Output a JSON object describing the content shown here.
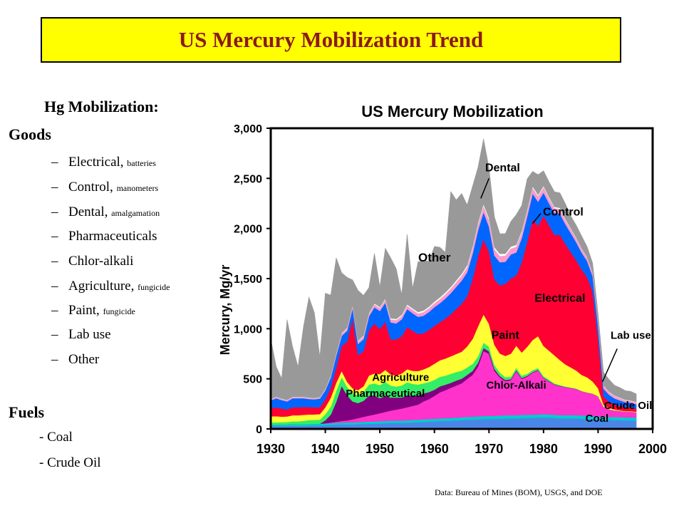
{
  "title": "US Mercury Mobilization Trend",
  "left_panel": {
    "heading": "Hg Mobilization:",
    "goods_label": "Goods",
    "goods": [
      {
        "dash": "–",
        "name": "Electrical,",
        "detail": "batteries"
      },
      {
        "dash": "–",
        "name": "Control,",
        "detail": "manometers"
      },
      {
        "dash": "–",
        "name": "Dental,",
        "detail": "amalgamation"
      },
      {
        "dash": "–",
        "name": "Pharmaceuticals",
        "detail": ""
      },
      {
        "dash": "–",
        "name": "Chlor-alkali",
        "detail": ""
      },
      {
        "dash": "–",
        "name": "Agriculture,",
        "detail": "fungicide"
      },
      {
        "dash": "–",
        "name": "Paint,",
        "detail": "fungicide"
      },
      {
        "dash": "–",
        "name": "Lab use",
        "detail": ""
      },
      {
        "dash": "–",
        "name": "Other",
        "detail": ""
      }
    ],
    "fuels_label": "Fuels",
    "fuels": [
      "- Coal",
      "- Crude Oil"
    ]
  },
  "source_note": "Data: Bureau of Mines (BOM), USGS, and DOE",
  "chart_data": {
    "type": "area",
    "title": "US Mercury Mobilization",
    "xlabel": "",
    "ylabel": "Mercury, Mg/yr",
    "xlim": [
      1930,
      2000
    ],
    "ylim": [
      0,
      3000
    ],
    "xticks": [
      "1930",
      "1940",
      "1950",
      "1960",
      "1970",
      "1980",
      "1990",
      "2000"
    ],
    "yticks": [
      "0",
      "500",
      "1,000",
      "1,500",
      "2,000",
      "2,500",
      "3,000"
    ],
    "grid": false,
    "x": [
      1930,
      1931,
      1932,
      1933,
      1934,
      1935,
      1936,
      1937,
      1938,
      1939,
      1940,
      1941,
      1942,
      1943,
      1944,
      1945,
      1946,
      1947,
      1948,
      1949,
      1950,
      1951,
      1952,
      1953,
      1954,
      1955,
      1956,
      1957,
      1958,
      1959,
      1960,
      1961,
      1962,
      1963,
      1964,
      1965,
      1966,
      1967,
      1968,
      1969,
      1970,
      1971,
      1972,
      1973,
      1974,
      1975,
      1976,
      1977,
      1978,
      1979,
      1980,
      1981,
      1982,
      1983,
      1984,
      1985,
      1986,
      1987,
      1988,
      1989,
      1990,
      1991,
      1992,
      1993,
      1994,
      1995,
      1996,
      1997
    ],
    "series": [
      {
        "name": "Coal",
        "color": "#4a86e8",
        "values": [
          30,
          30,
          28,
          30,
          32,
          30,
          30,
          32,
          33,
          35,
          38,
          40,
          42,
          45,
          45,
          45,
          48,
          50,
          52,
          52,
          55,
          58,
          60,
          60,
          60,
          62,
          65,
          68,
          70,
          72,
          75,
          78,
          80,
          82,
          85,
          88,
          90,
          92,
          95,
          98,
          100,
          100,
          102,
          105,
          105,
          105,
          108,
          110,
          110,
          112,
          115,
          112,
          110,
          105,
          105,
          105,
          105,
          102,
          100,
          100,
          95,
          90,
          90,
          88,
          88,
          85,
          85,
          85
        ]
      },
      {
        "name": "Crude Oil",
        "color": "#00cccc",
        "values": [
          15,
          15,
          15,
          15,
          16,
          16,
          16,
          17,
          17,
          18,
          18,
          18,
          19,
          19,
          20,
          20,
          20,
          21,
          21,
          22,
          22,
          22,
          23,
          23,
          24,
          24,
          25,
          25,
          25,
          26,
          26,
          27,
          27,
          28,
          28,
          28,
          29,
          29,
          30,
          30,
          30,
          30,
          31,
          31,
          31,
          31,
          32,
          32,
          32,
          32,
          32,
          32,
          32,
          32,
          32,
          32,
          32,
          32,
          32,
          31,
          30,
          30,
          30,
          30,
          30,
          30,
          30,
          30
        ]
      },
      {
        "name": "Chlor-Alkali",
        "color": "#ff33cc",
        "values": [
          0,
          0,
          0,
          0,
          0,
          0,
          0,
          0,
          0,
          0,
          0,
          5,
          10,
          15,
          20,
          30,
          40,
          50,
          60,
          70,
          80,
          90,
          100,
          110,
          120,
          130,
          140,
          150,
          180,
          200,
          230,
          260,
          280,
          300,
          320,
          340,
          380,
          420,
          500,
          650,
          620,
          450,
          380,
          340,
          350,
          440,
          360,
          380,
          420,
          440,
          360,
          330,
          300,
          290,
          280,
          270,
          260,
          240,
          230,
          220,
          200,
          100,
          75,
          65,
          60,
          55,
          55,
          50
        ]
      },
      {
        "name": "Pharmaceutical",
        "color": "#800080",
        "values": [
          0,
          0,
          0,
          0,
          0,
          0,
          0,
          0,
          0,
          0,
          30,
          80,
          200,
          350,
          250,
          180,
          150,
          160,
          200,
          190,
          150,
          160,
          130,
          120,
          110,
          120,
          100,
          90,
          80,
          70,
          60,
          60,
          55,
          50,
          50,
          45,
          40,
          38,
          35,
          30,
          25,
          20,
          15,
          12,
          10,
          10,
          8,
          8,
          6,
          5,
          5,
          4,
          3,
          3,
          2,
          2,
          2,
          2,
          1,
          1,
          1,
          1,
          1,
          1,
          1,
          1,
          1,
          1
        ]
      },
      {
        "name": "Agriculture",
        "color": "#33ee66",
        "values": [
          20,
          22,
          25,
          25,
          28,
          30,
          35,
          40,
          40,
          40,
          60,
          80,
          110,
          90,
          85,
          80,
          80,
          90,
          110,
          120,
          130,
          140,
          120,
          110,
          120,
          130,
          120,
          110,
          100,
          100,
          100,
          95,
          90,
          90,
          85,
          80,
          75,
          70,
          65,
          55,
          45,
          40,
          35,
          30,
          25,
          25,
          25,
          20,
          20,
          18,
          16,
          14,
          10,
          8,
          5,
          5,
          4,
          3,
          2,
          2,
          1,
          1,
          1,
          1,
          1,
          1,
          1,
          1
        ]
      },
      {
        "name": "Paint",
        "color": "#ffff33",
        "values": [
          60,
          60,
          55,
          55,
          60,
          60,
          60,
          55,
          55,
          55,
          70,
          90,
          80,
          60,
          50,
          50,
          50,
          55,
          90,
          100,
          110,
          120,
          110,
          110,
          120,
          130,
          130,
          135,
          140,
          150,
          160,
          165,
          170,
          175,
          180,
          190,
          210,
          250,
          300,
          280,
          230,
          200,
          190,
          210,
          230,
          220,
          230,
          270,
          300,
          320,
          300,
          290,
          280,
          250,
          220,
          200,
          180,
          160,
          150,
          120,
          80,
          20,
          15,
          10,
          5,
          5,
          5,
          5
        ]
      },
      {
        "name": "Electrical",
        "color": "#ff0033",
        "values": [
          80,
          90,
          80,
          70,
          80,
          80,
          80,
          75,
          70,
          70,
          80,
          100,
          150,
          250,
          400,
          700,
          350,
          350,
          450,
          500,
          450,
          480,
          350,
          360,
          370,
          420,
          400,
          370,
          360,
          370,
          380,
          380,
          400,
          420,
          450,
          480,
          500,
          600,
          700,
          750,
          720,
          650,
          680,
          720,
          750,
          700,
          900,
          1050,
          1200,
          1100,
          1300,
          1250,
          1200,
          1250,
          1200,
          1150,
          1100,
          1050,
          1000,
          900,
          500,
          80,
          60,
          50,
          45,
          40,
          35,
          30
        ]
      },
      {
        "name": "Control",
        "color": "#0066ff",
        "values": [
          80,
          90,
          85,
          80,
          90,
          90,
          85,
          80,
          80,
          85,
          90,
          100,
          120,
          100,
          110,
          100,
          110,
          120,
          140,
          160,
          180,
          190,
          170,
          160,
          170,
          180,
          175,
          170,
          175,
          180,
          185,
          190,
          200,
          210,
          220,
          230,
          240,
          250,
          260,
          270,
          250,
          240,
          230,
          220,
          240,
          230,
          240,
          250,
          260,
          240,
          230,
          220,
          220,
          210,
          200,
          190,
          180,
          170,
          160,
          150,
          120,
          80,
          70,
          60,
          55,
          50,
          50,
          45
        ]
      },
      {
        "name": "Dental",
        "color": "#ff99cc",
        "values": [
          10,
          10,
          10,
          10,
          10,
          10,
          10,
          10,
          10,
          10,
          12,
          15,
          18,
          20,
          22,
          22,
          24,
          25,
          25,
          26,
          28,
          28,
          28,
          30,
          30,
          30,
          32,
          32,
          34,
          35,
          36,
          38,
          40,
          42,
          44,
          46,
          48,
          50,
          52,
          55,
          60,
          60,
          60,
          58,
          56,
          55,
          54,
          54,
          52,
          52,
          50,
          48,
          46,
          44,
          40,
          38,
          36,
          34,
          32,
          30,
          28,
          26,
          24,
          22,
          20,
          18,
          16,
          15
        ]
      },
      {
        "name": "Lab use",
        "color": "#ffffff",
        "values": [
          5,
          5,
          5,
          5,
          5,
          5,
          5,
          5,
          5,
          5,
          6,
          7,
          8,
          9,
          10,
          10,
          10,
          11,
          12,
          12,
          13,
          14,
          14,
          15,
          15,
          16,
          16,
          17,
          18,
          18,
          19,
          20,
          20,
          21,
          22,
          22,
          23,
          24,
          25,
          26,
          26,
          25,
          24,
          23,
          22,
          22,
          22,
          20,
          20,
          18,
          18,
          16,
          15,
          14,
          13,
          12,
          12,
          10,
          10,
          10,
          9,
          8,
          8,
          8,
          7,
          7,
          7,
          7
        ]
      },
      {
        "name": "Other",
        "color": "#999999",
        "values": [
          600,
          300,
          200,
          800,
          500,
          300,
          700,
          1000,
          850,
          400,
          950,
          800,
          950,
          600,
          500,
          250,
          500,
          400,
          250,
          500,
          200,
          500,
          600,
          500,
          200,
          700,
          200,
          500,
          500,
          450,
          550,
          500,
          400,
          950,
          800,
          800,
          600,
          600,
          550,
          650,
          500,
          300,
          200,
          200,
          250,
          300,
          250,
          300,
          150,
          200,
          150,
          150,
          150,
          150,
          150,
          120,
          120,
          120,
          100,
          90,
          80,
          130,
          120,
          100,
          100,
          90,
          90,
          80
        ]
      }
    ],
    "annotations": [
      "Dental",
      "Control",
      "Other",
      "Electrical",
      "Lab use",
      "Paint",
      "Agriculture",
      "Pharmaceutical",
      "Chlor-Alkali",
      "Crude Oil",
      "Coal"
    ]
  }
}
